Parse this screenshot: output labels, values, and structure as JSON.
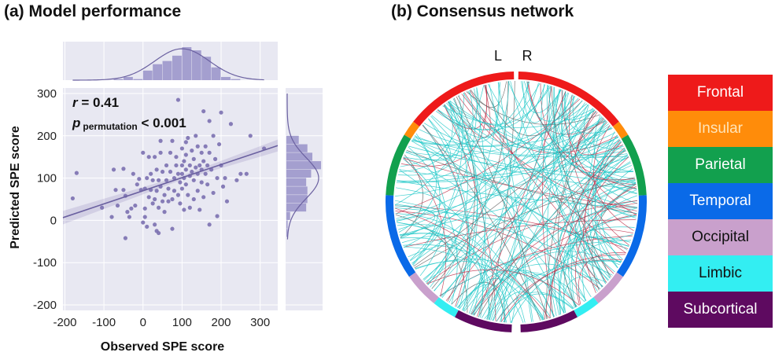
{
  "panel_a_title": "(a) Model performance",
  "panel_b_title": "(b) Consensus network",
  "chart_data": [
    {
      "type": "scatter",
      "xlabel": "Observed SPE score",
      "ylabel": "Predicted SPE score",
      "xlim": [
        -205,
        345
      ],
      "ylim": [
        -213,
        313
      ],
      "xticks": [
        -200,
        -100,
        0,
        100,
        200,
        300
      ],
      "yticks": [
        -200,
        -100,
        0,
        100,
        200,
        300
      ],
      "grid": true,
      "annotation_r": "r = 0.41",
      "annotation_p_main": "p",
      "annotation_p_sub": "permutation",
      "annotation_p_rest": " < 0.001",
      "point_color": "#7b70b0",
      "background": "#e8e8f2",
      "regression": {
        "slope": 0.31,
        "intercept": 70
      },
      "points": [
        [
          -180,
          52
        ],
        [
          -170,
          112
        ],
        [
          -105,
          30
        ],
        [
          -80,
          8
        ],
        [
          -75,
          120
        ],
        [
          -70,
          72
        ],
        [
          -65,
          35
        ],
        [
          -50,
          122
        ],
        [
          -50,
          72
        ],
        [
          -45,
          58
        ],
        [
          -45,
          -42
        ],
        [
          -40,
          20
        ],
        [
          -35,
          8
        ],
        [
          -30,
          28
        ],
        [
          -25,
          110
        ],
        [
          -20,
          35
        ],
        [
          -15,
          85
        ],
        [
          -10,
          98
        ],
        [
          -5,
          72
        ],
        [
          0,
          -5
        ],
        [
          0,
          160
        ],
        [
          5,
          75
        ],
        [
          5,
          28
        ],
        [
          5,
          8
        ],
        [
          10,
          -15
        ],
        [
          10,
          100
        ],
        [
          15,
          150
        ],
        [
          15,
          55
        ],
        [
          20,
          110
        ],
        [
          20,
          72
        ],
        [
          25,
          40
        ],
        [
          25,
          95
        ],
        [
          30,
          150
        ],
        [
          30,
          50
        ],
        [
          30,
          -10
        ],
        [
          35,
          -25
        ],
        [
          35,
          120
        ],
        [
          35,
          70
        ],
        [
          40,
          30
        ],
        [
          40,
          -30
        ],
        [
          40,
          95
        ],
        [
          45,
          188
        ],
        [
          45,
          160
        ],
        [
          45,
          80
        ],
        [
          50,
          115
        ],
        [
          50,
          45
        ],
        [
          55,
          60
        ],
        [
          55,
          20
        ],
        [
          60,
          130
        ],
        [
          60,
          95
        ],
        [
          65,
          75
        ],
        [
          65,
          45
        ],
        [
          70,
          160
        ],
        [
          70,
          115
        ],
        [
          75,
          50
        ],
        [
          75,
          -20
        ],
        [
          75,
          188
        ],
        [
          80,
          100
        ],
        [
          80,
          70
        ],
        [
          85,
          150
        ],
        [
          85,
          130
        ],
        [
          90,
          285
        ],
        [
          90,
          110
        ],
        [
          90,
          60
        ],
        [
          95,
          90
        ],
        [
          95,
          40
        ],
        [
          100,
          170
        ],
        [
          100,
          130
        ],
        [
          100,
          110
        ],
        [
          100,
          75
        ],
        [
          105,
          140
        ],
        [
          105,
          100
        ],
        [
          105,
          25
        ],
        [
          110,
          185
        ],
        [
          110,
          155
        ],
        [
          110,
          120
        ],
        [
          110,
          85
        ],
        [
          115,
          60
        ],
        [
          115,
          195
        ],
        [
          120,
          130
        ],
        [
          120,
          105
        ],
        [
          120,
          30
        ],
        [
          125,
          165
        ],
        [
          125,
          115
        ],
        [
          130,
          145
        ],
        [
          130,
          95
        ],
        [
          130,
          50
        ],
        [
          135,
          200
        ],
        [
          135,
          125
        ],
        [
          140,
          175
        ],
        [
          140,
          110
        ],
        [
          140,
          70
        ],
        [
          145,
          130
        ],
        [
          145,
          25
        ],
        [
          150,
          160
        ],
        [
          150,
          120
        ],
        [
          150,
          90
        ],
        [
          155,
          258
        ],
        [
          155,
          140
        ],
        [
          155,
          55
        ],
        [
          160,
          110
        ],
        [
          160,
          175
        ],
        [
          165,
          130
        ],
        [
          165,
          85
        ],
        [
          170,
          235
        ],
        [
          170,
          -10
        ],
        [
          170,
          160
        ],
        [
          175,
          120
        ],
        [
          180,
          200
        ],
        [
          180,
          65
        ],
        [
          185,
          145
        ],
        [
          190,
          100
        ],
        [
          190,
          10
        ],
        [
          195,
          180
        ],
        [
          200,
          255
        ],
        [
          200,
          130
        ],
        [
          205,
          80
        ],
        [
          210,
          100
        ],
        [
          215,
          45
        ],
        [
          225,
          228
        ],
        [
          240,
          95
        ],
        [
          250,
          110
        ],
        [
          265,
          110
        ],
        [
          275,
          200
        ],
        [
          310,
          170
        ]
      ]
    },
    {
      "type": "bar",
      "orientation": "vertical",
      "role": "top-marginal-histogram",
      "categories": [
        -175,
        -150,
        -125,
        -100,
        -75,
        -50,
        -25,
        0,
        25,
        50,
        75,
        100,
        125,
        150,
        175,
        200,
        225,
        250,
        275,
        300
      ],
      "values": [
        0,
        0,
        0,
        0,
        1,
        3,
        1,
        9,
        15,
        18,
        23,
        31,
        28,
        22,
        12,
        3,
        1,
        0,
        0,
        0
      ]
    },
    {
      "type": "bar",
      "orientation": "horizontal",
      "role": "right-marginal-histogram",
      "categories": [
        -40,
        -20,
        0,
        20,
        40,
        60,
        80,
        100,
        120,
        140,
        160,
        180
      ],
      "values": [
        1,
        1,
        3,
        16,
        17,
        17,
        16,
        20,
        28,
        21,
        17,
        10
      ]
    },
    {
      "type": "chord",
      "hemisphere_labels": [
        "L",
        "R"
      ],
      "edge_colors": [
        "#20c8c8",
        "#c0304a",
        "#606060"
      ],
      "regions": [
        {
          "name": "Frontal",
          "color": "#ee1a1a",
          "text_color": "#ffffff",
          "span_deg": [
            1,
            52
          ]
        },
        {
          "name": "Insular",
          "color": "#ff8c0a",
          "text_color": "#ffe4b8",
          "span_deg": [
            52,
            59
          ]
        },
        {
          "name": "Parietal",
          "color": "#12a04e",
          "text_color": "#ffffff",
          "span_deg": [
            59,
            87
          ]
        },
        {
          "name": "Temporal",
          "color": "#0a6ae8",
          "text_color": "#ffffff",
          "span_deg": [
            87,
            125
          ]
        },
        {
          "name": "Occipital",
          "color": "#c9a0cc",
          "text_color": "#111111",
          "span_deg": [
            125,
            141
          ]
        },
        {
          "name": "Limbic",
          "color": "#33eef2",
          "text_color": "#111111",
          "span_deg": [
            141,
            152
          ]
        },
        {
          "name": "Subcortical",
          "color": "#5e0a60",
          "text_color": "#ffffff",
          "span_deg": [
            152,
            178
          ]
        }
      ]
    }
  ]
}
